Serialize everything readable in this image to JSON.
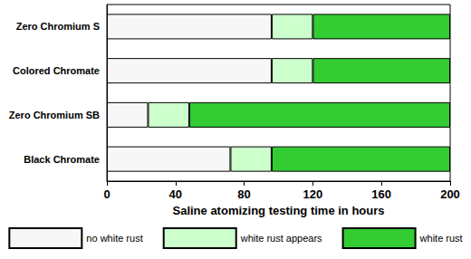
{
  "chart_data": {
    "type": "bar",
    "orientation": "horizontal",
    "stacked": true,
    "xlabel": "Saline atomizing testing time in hours",
    "categories": [
      "Zero Chromium S",
      "Colored Chromate",
      "Zero Chromium SB",
      "Black Chromate"
    ],
    "series": [
      {
        "name": "no white rust",
        "color": "#f7f7f7",
        "values": [
          96,
          96,
          24,
          72
        ]
      },
      {
        "name": "white rust appears",
        "color": "#ccffcc",
        "values": [
          24,
          24,
          24,
          24
        ]
      },
      {
        "name": "white rust",
        "color": "#33cc33",
        "values": [
          80,
          80,
          152,
          104
        ]
      }
    ],
    "xlim": [
      0,
      200
    ],
    "xticks": [
      0,
      40,
      80,
      120,
      160,
      200
    ],
    "grid": false,
    "legend": "bottom"
  }
}
